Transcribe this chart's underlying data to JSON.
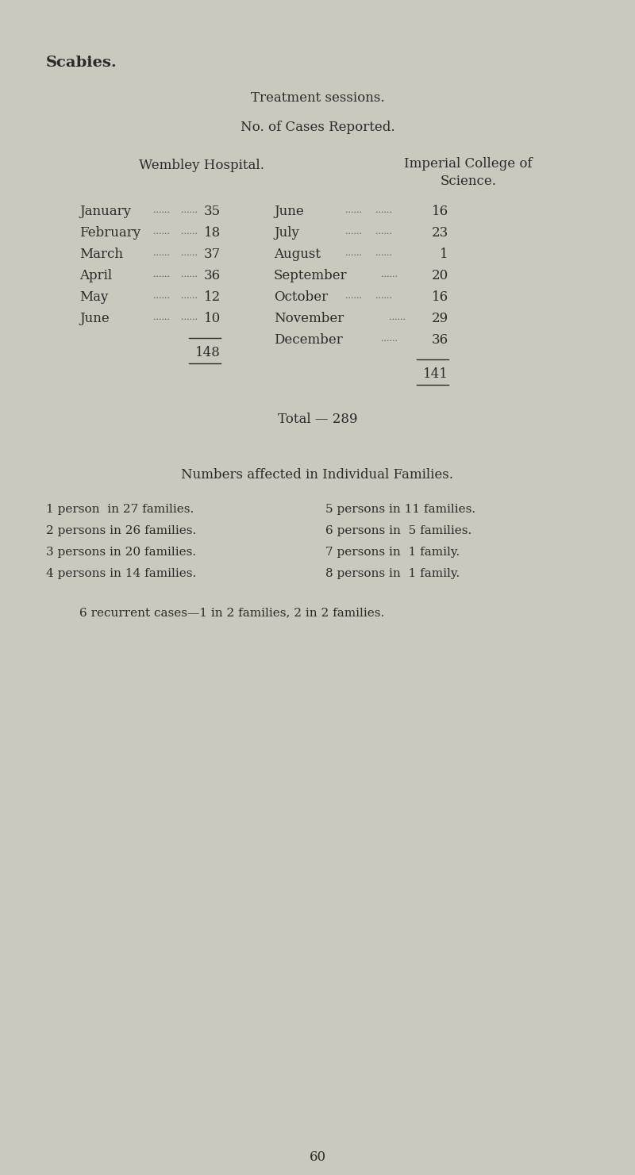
{
  "bg_color": "#cccab f",
  "text_color": "#2a2a2a",
  "title_bold": "Scabies.",
  "subtitle1": "Treatment sessions.",
  "subtitle2": "No. of Cases Reported.",
  "col1_header": "Wembley Hospital.",
  "col2_header1": "Imperial College of",
  "col2_header2": "Science.",
  "wembley_months": [
    "January",
    "February",
    "March",
    "April",
    "May",
    "June"
  ],
  "wembley_values": [
    "35",
    "18",
    "37",
    "36",
    "12",
    "10"
  ],
  "wembley_total": "148",
  "imperial_months": [
    "June",
    "July",
    "August",
    "September",
    "October",
    "November",
    "December"
  ],
  "imperial_values": [
    "16",
    "23",
    "1",
    "20",
    "16",
    "29",
    "36"
  ],
  "imperial_total": "141",
  "grand_total_label": "Total — 289",
  "families_title": "Numbers affected in Individual Families.",
  "families_left": [
    "1 person  in 27 families.",
    "2 persons in 26 families.",
    "3 persons in 20 families.",
    "4 persons in 14 families."
  ],
  "families_right": [
    "5 persons in 11 families.",
    "6 persons in  5 families.",
    "7 persons in  1 family.",
    "8 persons in  1 family."
  ],
  "recurrent": "6 recurrent cases—1 in 2 families, 2 in 2 families.",
  "page_number": "60",
  "bg_hex": "#cbc9be"
}
